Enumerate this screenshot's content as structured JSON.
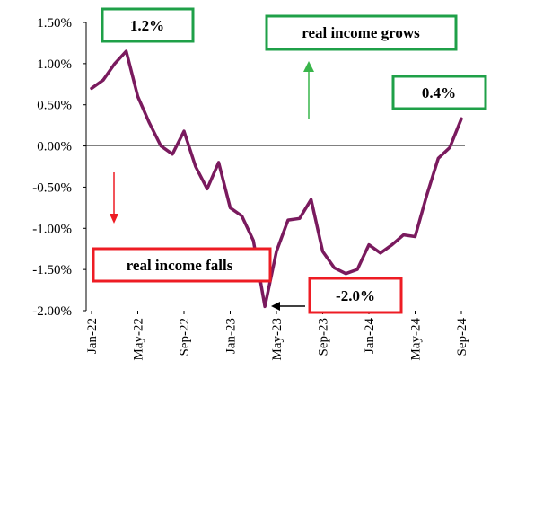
{
  "chart_data": {
    "type": "line",
    "title": "",
    "xlabel": "",
    "ylabel": "",
    "ylim": [
      -2.0,
      1.5
    ],
    "y_ticks": [
      "1.50%",
      "1.00%",
      "0.50%",
      "0.00%",
      "-0.50%",
      "-1.00%",
      "-1.50%",
      "-2.00%"
    ],
    "y_tick_values": [
      1.5,
      1.0,
      0.5,
      0.0,
      -0.5,
      -1.0,
      -1.5,
      -2.0
    ],
    "x_tick_labels": [
      "Jan-22",
      "May-22",
      "Sep-22",
      "Jan-23",
      "May-23",
      "Sep-23",
      "Jan-24",
      "May-24",
      "Sep-24"
    ],
    "x_tick_index": [
      0,
      4,
      8,
      12,
      16,
      20,
      24,
      28,
      32
    ],
    "series": [
      {
        "name": "real income",
        "color": "#7a1a5e",
        "values": [
          0.7,
          0.8,
          1.0,
          1.15,
          0.6,
          0.28,
          0.0,
          -0.1,
          0.18,
          -0.25,
          -0.52,
          -0.2,
          -0.75,
          -0.85,
          -1.15,
          -1.95,
          -1.28,
          -0.9,
          -0.88,
          -0.65,
          -1.28,
          -1.48,
          -1.55,
          -1.5,
          -1.2,
          -1.3,
          -1.2,
          -1.08,
          -1.1,
          -0.6,
          -0.15,
          -0.02,
          0.33
        ]
      }
    ],
    "annotations": [
      {
        "label": "1.2%",
        "color": "#1fa048"
      },
      {
        "label": "real income grows",
        "color": "#1fa048"
      },
      {
        "label": "0.4%",
        "color": "#1fa048"
      },
      {
        "label": "real income falls",
        "color": "#ee1c24"
      },
      {
        "label": "-2.0%",
        "color": "#ee1c24"
      }
    ],
    "arrow_colors": {
      "up": "#39b54a",
      "down": "#ee1c24",
      "pointer": "#000000"
    }
  }
}
